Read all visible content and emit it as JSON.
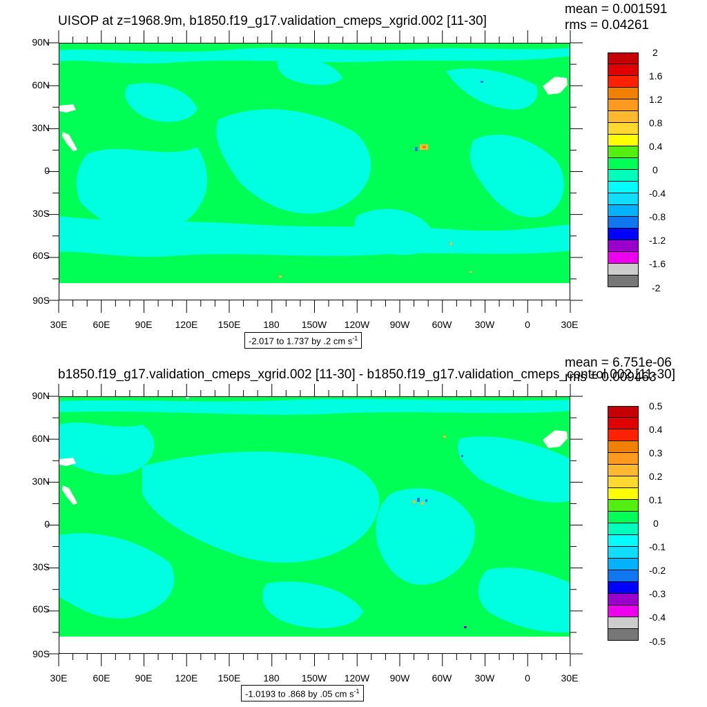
{
  "panels": [
    {
      "title": "UISOP at z=1968.9m, b1850.f19_g17.validation_cmeps_xgrid.002 [11-30]",
      "mean": "mean = 0.001591",
      "rms": "rms = 0.04261",
      "range_note": "-2.017 to 1.737 by .2 cm s",
      "range_exp": "-1",
      "colorbar_labels": [
        "2",
        "1.6",
        "1.2",
        "0.8",
        "0.4",
        "0",
        "-0.4",
        "-0.8",
        "-1.2",
        "-1.6",
        "-2"
      ]
    },
    {
      "title": "b1850.f19_g17.validation_cmeps_xgrid.002 [11-30] - b1850.f19_g17.validation_cmeps_control.002 [11-30]",
      "mean": "mean = 6.751e-06",
      "rms": "rms = 0.009463",
      "range_note": "-1.0193 to .868 by .05 cm s",
      "range_exp": "-1",
      "colorbar_labels": [
        "0.5",
        "0.4",
        "0.3",
        "0.2",
        "0.1",
        "0",
        "-0.1",
        "-0.2",
        "-0.3",
        "-0.4",
        "-0.5"
      ]
    }
  ],
  "axes": {
    "y_ticks": [
      "90N",
      "60N",
      "30N",
      "0",
      "30S",
      "60S",
      "90S"
    ],
    "x_ticks": [
      "30E",
      "60E",
      "90E",
      "120E",
      "150E",
      "180",
      "150W",
      "120W",
      "90W",
      "60W",
      "30W",
      "0",
      "30E"
    ]
  },
  "colors": {
    "background_field": "#00ff55",
    "light_field": "#00ffe0",
    "colorbar": [
      "#c40000",
      "#e00000",
      "#ff2200",
      "#f08000",
      "#ff9a20",
      "#ffb830",
      "#ffd830",
      "#ffff00",
      "#55ee11",
      "#00ff55",
      "#00ffbb",
      "#00ffff",
      "#11ddff",
      "#00b2ff",
      "#1177ee",
      "#0000ff",
      "#9900cc",
      "#ee00ee",
      "#cccccc",
      "#777777"
    ]
  },
  "chart_data": [
    {
      "type": "heatmap",
      "title": "UISOP at z=1968.9m, b1850.f19_g17.validation_cmeps_xgrid.002 [11-30]",
      "xlabel": "",
      "ylabel": "",
      "xlim": [
        30,
        390
      ],
      "ylim": [
        -90,
        90
      ],
      "x_ticks": [
        "30E",
        "60E",
        "90E",
        "120E",
        "150E",
        "180",
        "150W",
        "120W",
        "90W",
        "60W",
        "30W",
        "0",
        "30E"
      ],
      "y_ticks": [
        "90N",
        "60N",
        "30N",
        "0",
        "30S",
        "60S",
        "90S"
      ],
      "colorbar_range": [
        -2,
        2
      ],
      "colorbar_labels": [
        "2",
        "1.6",
        "1.2",
        "0.8",
        "0.4",
        "0",
        "-0.4",
        "-0.8",
        "-1.2",
        "-1.6",
        "-2"
      ],
      "mean": 0.001591,
      "rms": 0.04261,
      "data_min": -2.017,
      "data_max": 1.737,
      "contour_interval": 0.2,
      "units": "cm s-1"
    },
    {
      "type": "heatmap",
      "title": "b1850.f19_g17.validation_cmeps_xgrid.002 [11-30] - b1850.f19_g17.validation_cmeps_control.002 [11-30]",
      "xlabel": "",
      "ylabel": "",
      "xlim": [
        30,
        390
      ],
      "ylim": [
        -90,
        90
      ],
      "x_ticks": [
        "30E",
        "60E",
        "90E",
        "120E",
        "150E",
        "180",
        "150W",
        "120W",
        "90W",
        "60W",
        "30W",
        "0",
        "30E"
      ],
      "y_ticks": [
        "90N",
        "60N",
        "30N",
        "0",
        "30S",
        "60S",
        "90S"
      ],
      "colorbar_range": [
        -0.5,
        0.5
      ],
      "colorbar_labels": [
        "0.5",
        "0.4",
        "0.3",
        "0.2",
        "0.1",
        "0",
        "-0.1",
        "-0.2",
        "-0.3",
        "-0.4",
        "-0.5"
      ],
      "mean": 6.751e-06,
      "rms": 0.009463,
      "data_min": -1.0193,
      "data_max": 0.868,
      "contour_interval": 0.05,
      "units": "cm s-1"
    }
  ]
}
